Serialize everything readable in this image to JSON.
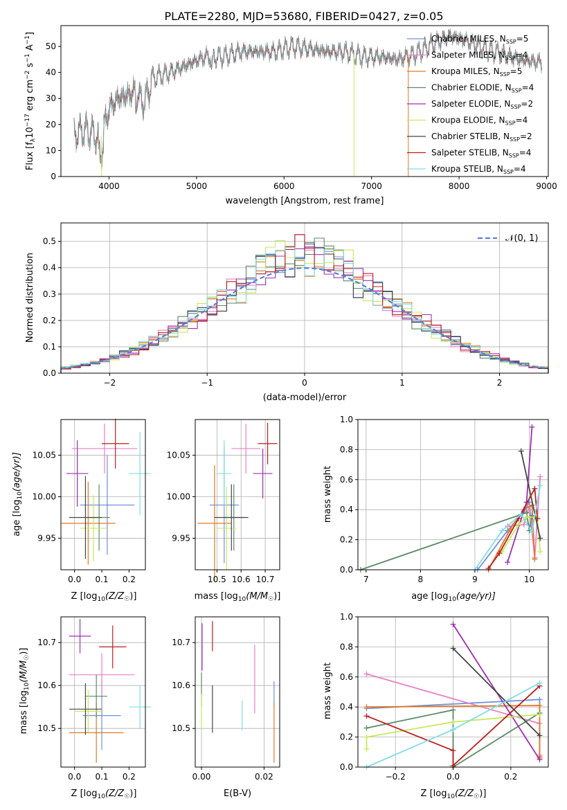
{
  "colors": {
    "Chabrier MILES": "#6f8fdd",
    "Salpeter MILES": "#e87fc7",
    "Kroupa MILES": "#e07b22",
    "Chabrier ELODIE": "#5b8a66",
    "Salpeter ELODIE": "#9b2fb0",
    "Kroupa ELODIE": "#c8e85c",
    "Chabrier STELIB": "#444444",
    "Salpeter STELIB": "#b81e1e",
    "Kroupa STELIB": "#7fdde6"
  },
  "chart_data": [
    {
      "id": "spectrum",
      "type": "line",
      "title": "PLATE=2280, MJD=53680, FIBERID=0427, z=0.05",
      "xlabel": "wavelength [Angstrom, rest frame]",
      "ylabel_main": "Flux [f",
      "ylabel_sub": "λ",
      "ylabel_rest": "10",
      "ylabel_exp1": "−17",
      "ylabel_mid": " erg cm",
      "ylabel_exp2": "−2",
      "ylabel_s": " s",
      "ylabel_exp3": "−1",
      "ylabel_end": " A",
      "ylabel_exp4": "−1",
      "ylabel_close": "]",
      "xlim": [
        3450,
        9020
      ],
      "ylim": [
        0,
        58
      ],
      "xticks": [
        4000,
        5000,
        6000,
        7000,
        8000,
        9000
      ],
      "yticks": [
        0,
        10,
        20,
        30,
        40,
        50
      ],
      "spectrum_shape": {
        "x": [
          3600,
          3700,
          3800,
          3900,
          4000,
          4100,
          4200,
          4300,
          4400,
          4500,
          4700,
          4900,
          5100,
          5300,
          5500,
          5700,
          5900,
          6100,
          6300,
          6500,
          6700,
          6900,
          7100,
          7300,
          7500,
          7700,
          7900,
          8100,
          8300,
          8500,
          8700,
          8900
        ],
        "y": [
          16,
          18,
          17,
          14,
          26,
          30,
          31,
          33,
          28,
          38,
          40,
          43,
          46,
          46,
          48,
          48,
          48,
          50,
          49,
          48,
          48,
          46,
          46,
          45,
          47,
          51,
          54,
          52,
          49,
          47,
          45,
          44
        ]
      },
      "drop_lines": [
        3915,
        6800,
        7420
      ],
      "legend": [
        {
          "name": "Chabrier MILES",
          "label": "Chabrier MILES, N",
          "sub": "SSP",
          "n": "=5"
        },
        {
          "name": "Salpeter MILES",
          "label": "Salpeter MILES, N",
          "sub": "SSP",
          "n": "=4"
        },
        {
          "name": "Kroupa MILES",
          "label": "Kroupa MILES, N",
          "sub": "SSP",
          "n": "=5"
        },
        {
          "name": "Chabrier ELODIE",
          "label": "Chabrier ELODIE, N",
          "sub": "SSP",
          "n": "=4"
        },
        {
          "name": "Salpeter ELODIE",
          "label": "Salpeter ELODIE, N",
          "sub": "SSP",
          "n": "=2"
        },
        {
          "name": "Kroupa ELODIE",
          "label": "Kroupa ELODIE, N",
          "sub": "SSP",
          "n": "=4"
        },
        {
          "name": "Chabrier STELIB",
          "label": "Chabrier STELIB, N",
          "sub": "SSP",
          "n": "=2"
        },
        {
          "name": "Salpeter STELIB",
          "label": "Salpeter STELIB, N",
          "sub": "SSP",
          "n": "=4"
        },
        {
          "name": "Kroupa STELIB",
          "label": "Kroupa STELIB, N",
          "sub": "SSP",
          "n": "=4"
        }
      ]
    },
    {
      "id": "residuals",
      "type": "line",
      "xlabel": "(data-model)/error",
      "ylabel": "Normed distribution",
      "xlim": [
        -2.5,
        2.5
      ],
      "ylim": [
        0,
        0.57
      ],
      "xticks": [
        -2,
        -1,
        0,
        1,
        2
      ],
      "xtick_labels": [
        "−2",
        "−1",
        "0",
        "1",
        "2"
      ],
      "yticks": [
        0.0,
        0.1,
        0.2,
        0.3,
        0.4,
        0.5
      ],
      "ytick_labels": [
        "0.0",
        "0.1",
        "0.2",
        "0.3",
        "0.4",
        "0.5"
      ],
      "grid": true,
      "legend_label": "𝒩(0, 1)",
      "legend_position": "top-right",
      "bin_width": 0.1,
      "histograms": [
        {
          "name": "Chabrier MILES",
          "shift": 0.02
        },
        {
          "name": "Salpeter MILES",
          "shift": -0.03
        },
        {
          "name": "Kroupa MILES",
          "shift": 0.01
        },
        {
          "name": "Chabrier ELODIE",
          "shift": -0.02
        },
        {
          "name": "Salpeter ELODIE",
          "shift": 0.03
        },
        {
          "name": "Kroupa ELODIE",
          "shift": -0.01
        },
        {
          "name": "Chabrier STELIB",
          "shift": 0.0
        },
        {
          "name": "Salpeter STELIB",
          "shift": 0.02
        },
        {
          "name": "Kroupa STELIB",
          "shift": -0.02
        }
      ]
    },
    {
      "id": "age_vs_Z",
      "type": "scatter",
      "xlabel": "Z [log",
      "xlabel_sub": "10",
      "xlabel_rest": "(Z/Z",
      "xlabel_sun": "☉",
      "xlabel_close": ")]",
      "ylabel": "age  [log",
      "ylabel_sub": "10",
      "ylabel_rest": "(age/yr)]",
      "xlim": [
        -0.05,
        0.26
      ],
      "ylim": [
        9.912,
        10.093
      ],
      "xticks": [
        0.0,
        0.1,
        0.2
      ],
      "yticks": [
        9.95,
        10.0,
        10.05
      ],
      "points": [
        {
          "name": "Chabrier MILES",
          "x": 0.12,
          "y": 9.99,
          "xerr": 0.1,
          "yerr": 0.06
        },
        {
          "name": "Salpeter MILES",
          "x": 0.11,
          "y": 10.058,
          "xerr": 0.12,
          "yerr": 0.03
        },
        {
          "name": "Kroupa MILES",
          "x": 0.05,
          "y": 9.968,
          "xerr": 0.1,
          "yerr": 0.05
        },
        {
          "name": "Chabrier ELODIE",
          "x": 0.09,
          "y": 9.975,
          "xerr": 0.04,
          "yerr": 0.04
        },
        {
          "name": "Salpeter ELODIE",
          "x": 0.01,
          "y": 10.028,
          "xerr": 0.04,
          "yerr": 0.04
        },
        {
          "name": "Kroupa ELODIE",
          "x": 0.07,
          "y": 9.962,
          "xerr": 0.05,
          "yerr": 0.04
        },
        {
          "name": "Chabrier STELIB",
          "x": 0.04,
          "y": 9.975,
          "xerr": 0.06,
          "yerr": 0.05
        },
        {
          "name": "Salpeter STELIB",
          "x": 0.15,
          "y": 10.064,
          "xerr": 0.05,
          "yerr": 0.03
        },
        {
          "name": "Kroupa STELIB",
          "x": 0.24,
          "y": 10.028,
          "xerr": 0.04,
          "yerr": 0.05
        }
      ]
    },
    {
      "id": "age_vs_mass",
      "type": "scatter",
      "xlabel": "mass [log",
      "xlabel_sub": "10",
      "xlabel_rest": "(M/M",
      "xlabel_sun": "☉",
      "xlabel_close": ")]",
      "xlim": [
        10.41,
        10.76
      ],
      "ylim": [
        9.912,
        10.093
      ],
      "xticks": [
        10.5,
        10.6,
        10.7
      ],
      "yticks": [
        9.95,
        10.0,
        10.05
      ],
      "points": [
        {
          "name": "Chabrier MILES",
          "x": 10.53,
          "y": 9.99,
          "xerr": 0.06,
          "yerr": 0.07
        },
        {
          "name": "Salpeter MILES",
          "x": 10.62,
          "y": 10.058,
          "xerr": 0.06,
          "yerr": 0.03
        },
        {
          "name": "Kroupa MILES",
          "x": 10.49,
          "y": 9.968,
          "xerr": 0.07,
          "yerr": 0.07
        },
        {
          "name": "Chabrier ELODIE",
          "x": 10.57,
          "y": 9.975,
          "xerr": 0.04,
          "yerr": 0.04
        },
        {
          "name": "Salpeter ELODIE",
          "x": 10.69,
          "y": 10.028,
          "xerr": 0.04,
          "yerr": 0.03
        },
        {
          "name": "Kroupa ELODIE",
          "x": 10.54,
          "y": 9.962,
          "xerr": 0.04,
          "yerr": 0.05
        },
        {
          "name": "Chabrier STELIB",
          "x": 10.56,
          "y": 9.975,
          "xerr": 0.07,
          "yerr": 0.04
        },
        {
          "name": "Salpeter STELIB",
          "x": 10.71,
          "y": 10.064,
          "xerr": 0.04,
          "yerr": 0.025
        },
        {
          "name": "Kroupa STELIB",
          "x": 10.53,
          "y": 10.028,
          "xerr": 0.03,
          "yerr": 0.04
        }
      ]
    },
    {
      "id": "weight_vs_age",
      "type": "line",
      "xlabel": "age  [log",
      "xlabel_sub": "10",
      "xlabel_rest": "(age/yr)]",
      "ylabel": "mass weight",
      "xlim": [
        6.85,
        10.35
      ],
      "ylim": [
        0,
        1
      ],
      "xticks": [
        7,
        8,
        9,
        10
      ],
      "yticks": [
        0.0,
        0.2,
        0.4,
        0.6,
        0.8,
        1.0
      ],
      "ytick_labels": [
        "0.0",
        "0.2",
        "0.4",
        "0.6",
        "0.8",
        "1.0"
      ],
      "grid": true,
      "series": [
        {
          "name": "Chabrier MILES",
          "x": [
            9.05,
            9.6,
            9.9,
            10.0,
            10.1
          ],
          "y": [
            0.0,
            0.26,
            0.39,
            0.45,
            0.08
          ]
        },
        {
          "name": "Salpeter MILES",
          "x": [
            9.6,
            9.9,
            10.0,
            10.1,
            10.2
          ],
          "y": [
            0.29,
            0.3,
            0.42,
            0.08,
            0.62
          ]
        },
        {
          "name": "Kroupa MILES",
          "x": [
            9.25,
            9.65,
            9.9,
            10.05,
            10.1
          ],
          "y": [
            0.0,
            0.27,
            0.4,
            0.43,
            0.07
          ]
        },
        {
          "name": "Chabrier ELODIE",
          "x": [
            6.9,
            9.95,
            10.0,
            10.05
          ],
          "y": [
            0.0,
            0.38,
            0.26,
            0.36
          ]
        },
        {
          "name": "Salpeter ELODIE",
          "x": [
            9.6,
            9.95,
            10.05
          ],
          "y": [
            0.05,
            0.45,
            0.95
          ]
        },
        {
          "name": "Kroupa ELODIE",
          "x": [
            9.5,
            9.8,
            9.95,
            10.15,
            10.2
          ],
          "y": [
            0.12,
            0.3,
            0.35,
            0.35,
            0.12
          ]
        },
        {
          "name": "Chabrier STELIB",
          "x": [
            9.85,
            10.2
          ],
          "y": [
            0.79,
            0.21
          ]
        },
        {
          "name": "Salpeter STELIB",
          "x": [
            9.25,
            9.45,
            9.8,
            10.1,
            10.15
          ],
          "y": [
            0.01,
            0.11,
            0.34,
            0.54,
            0.34
          ]
        },
        {
          "name": "Kroupa STELIB",
          "x": [
            9.0,
            9.5,
            9.85,
            10.05,
            10.2
          ],
          "y": [
            0.0,
            0.26,
            0.37,
            0.25,
            0.56
          ]
        }
      ]
    },
    {
      "id": "mass_vs_Z",
      "type": "scatter",
      "xlabel": "Z [log",
      "xlabel_sub": "10",
      "xlabel_rest": "(Z/Z",
      "xlabel_sun": "☉",
      "xlabel_close": ")]",
      "ylabel": "mass [log",
      "ylabel_sub": "10",
      "ylabel_rest": "(M/M",
      "ylabel_sun": "☉",
      "ylabel_close": ")]",
      "xlim": [
        -0.05,
        0.26
      ],
      "ylim": [
        10.41,
        10.76
      ],
      "xticks": [
        0.0,
        0.1,
        0.2
      ],
      "yticks": [
        10.5,
        10.6,
        10.7
      ],
      "points": [
        {
          "name": "Chabrier MILES",
          "x": 0.1,
          "y": 10.53,
          "xerr": 0.07,
          "yerr": 0.08
        },
        {
          "name": "Salpeter MILES",
          "x": 0.1,
          "y": 10.625,
          "xerr": 0.12,
          "yerr": 0.05
        },
        {
          "name": "Kroupa MILES",
          "x": 0.08,
          "y": 10.49,
          "xerr": 0.1,
          "yerr": 0.07
        },
        {
          "name": "Chabrier ELODIE",
          "x": 0.08,
          "y": 10.575,
          "xerr": 0.04,
          "yerr": 0.05
        },
        {
          "name": "Salpeter ELODIE",
          "x": 0.02,
          "y": 10.715,
          "xerr": 0.04,
          "yerr": 0.04
        },
        {
          "name": "Kroupa ELODIE",
          "x": 0.05,
          "y": 10.54,
          "xerr": 0.05,
          "yerr": 0.05
        },
        {
          "name": "Chabrier STELIB",
          "x": 0.04,
          "y": 10.545,
          "xerr": 0.06,
          "yerr": 0.06
        },
        {
          "name": "Salpeter STELIB",
          "x": 0.14,
          "y": 10.69,
          "xerr": 0.05,
          "yerr": 0.05
        },
        {
          "name": "Kroupa STELIB",
          "x": 0.24,
          "y": 10.55,
          "xerr": 0.04,
          "yerr": 0.05
        }
      ]
    },
    {
      "id": "mass_vs_ebv",
      "type": "scatter",
      "xlabel": "E(B-V)",
      "xlim": [
        -0.002,
        0.025
      ],
      "ylim": [
        10.41,
        10.76
      ],
      "xticks": [
        0.0,
        0.02
      ],
      "xtick_labels": [
        "0.00",
        "0.02"
      ],
      "yticks": [
        10.5,
        10.6,
        10.7
      ],
      "points": [
        {
          "name": "Chabrier MILES",
          "x": 0.0232,
          "y": 10.58,
          "yerr": 0.03
        },
        {
          "name": "Salpeter MILES",
          "x": 0.017,
          "y": 10.615,
          "yerr": 0.08
        },
        {
          "name": "Kroupa MILES",
          "x": 0.0232,
          "y": 10.49,
          "yerr": 0.07
        },
        {
          "name": "Chabrier ELODIE",
          "x": 0.0,
          "y": 10.59,
          "yerr": 0.04
        },
        {
          "name": "Salpeter ELODIE",
          "x": 0.0002,
          "y": 10.69,
          "yerr": 0.055
        },
        {
          "name": "Kroupa ELODIE",
          "x": 0.0,
          "y": 10.54,
          "yerr": 0.04
        },
        {
          "name": "Chabrier STELIB",
          "x": 0.0035,
          "y": 10.545,
          "yerr": 0.055
        },
        {
          "name": "Salpeter STELIB",
          "x": 0.0035,
          "y": 10.715,
          "yerr": 0.035
        },
        {
          "name": "Kroupa STELIB",
          "x": 0.013,
          "y": 10.53,
          "yerr": 0.035
        }
      ]
    },
    {
      "id": "weight_vs_Z",
      "type": "line",
      "xlabel": "Z [log",
      "xlabel_sub": "10",
      "xlabel_rest": "(Z/Z",
      "xlabel_sun": "☉",
      "xlabel_close": ")]",
      "ylabel": "mass weight",
      "xlim": [
        -0.33,
        0.33
      ],
      "ylim": [
        0,
        1
      ],
      "xticks": [
        -0.2,
        0.0,
        0.2
      ],
      "xtick_labels": [
        "−0.2",
        "0.0",
        "0.2"
      ],
      "yticks": [
        0.0,
        0.2,
        0.4,
        0.6,
        0.8,
        1.0
      ],
      "ytick_labels": [
        "0.0",
        "0.2",
        "0.4",
        "0.6",
        "0.8",
        "1.0"
      ],
      "grid": true,
      "series": [
        {
          "name": "Chabrier MILES",
          "x": [
            -0.3,
            0.3,
            0.3
          ],
          "y": [
            0.39,
            0.45,
            0.08
          ]
        },
        {
          "name": "Salpeter MILES",
          "x": [
            -0.3,
            0.3,
            0.3
          ],
          "y": [
            0.62,
            0.29,
            0.08
          ]
        },
        {
          "name": "Kroupa MILES",
          "x": [
            -0.3,
            0.3,
            0.3,
            0.3
          ],
          "y": [
            0.4,
            0.41,
            0.07,
            0.06
          ]
        },
        {
          "name": "Chabrier ELODIE",
          "x": [
            -0.3,
            0.0,
            0.0,
            0.3
          ],
          "y": [
            0.26,
            0.38,
            0.0,
            0.36
          ]
        },
        {
          "name": "Salpeter ELODIE",
          "x": [
            0.0,
            0.3
          ],
          "y": [
            0.95,
            0.05
          ]
        },
        {
          "name": "Kroupa ELODIE",
          "x": [
            -0.3,
            -0.3,
            0.0,
            0.3
          ],
          "y": [
            0.12,
            0.2,
            0.3,
            0.35
          ]
        },
        {
          "name": "Chabrier STELIB",
          "x": [
            0.0,
            0.3
          ],
          "y": [
            0.79,
            0.21
          ]
        },
        {
          "name": "Salpeter STELIB",
          "x": [
            -0.3,
            0.0,
            0.0,
            0.3
          ],
          "y": [
            0.34,
            0.11,
            0.01,
            0.54
          ]
        },
        {
          "name": "Kroupa STELIB",
          "x": [
            -0.3,
            0.0,
            0.3
          ],
          "y": [
            0.0,
            0.25,
            0.56
          ]
        }
      ]
    }
  ]
}
